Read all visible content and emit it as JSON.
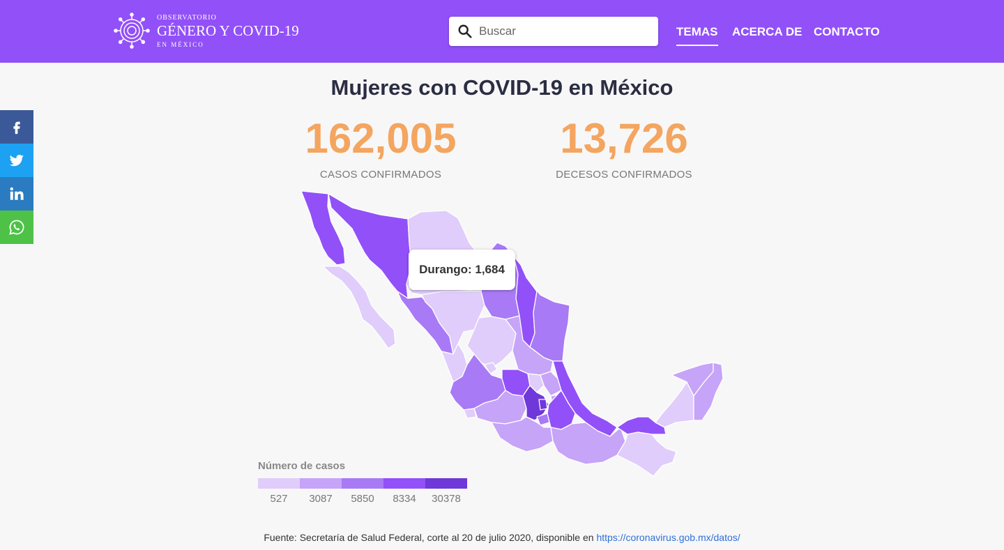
{
  "header": {
    "logo": {
      "line1": "OBSERVATORIO",
      "line2": "GÉNERO Y COVID-19",
      "line3": "EN MÉXICO"
    },
    "search": {
      "placeholder": "Buscar"
    },
    "nav": [
      {
        "label": "TEMAS"
      },
      {
        "label": "ACERCA DE"
      },
      {
        "label": "CONTACTO"
      }
    ]
  },
  "social": [
    {
      "name": "facebook",
      "color": "#3b5998"
    },
    {
      "name": "twitter",
      "color": "#1da1f2"
    },
    {
      "name": "linkedin",
      "color": "#2a7bc0"
    },
    {
      "name": "whatsapp",
      "color": "#4dc247"
    }
  ],
  "main": {
    "title": "Mujeres con COVID-19 en México",
    "stats": [
      {
        "value": "162,005",
        "label": "CASOS CONFIRMADOS"
      },
      {
        "value": "13,726",
        "label": "DECESOS CONFIRMADOS"
      }
    ],
    "tooltip": "Durango: 1,684",
    "legend": {
      "title": "Número de casos",
      "colors": [
        "#e0cdfb",
        "#c6a4f8",
        "#a87af6",
        "#9250f8",
        "#6f38d8"
      ],
      "labels": [
        "527",
        "3087",
        "5850",
        "8334",
        "30378"
      ]
    },
    "source": {
      "text": "Fuente: Secretaría de Salud Federal, corte al 20 de julio 2020, disponible en ",
      "link": "https://coronavirus.gob.mx/datos/"
    }
  }
}
